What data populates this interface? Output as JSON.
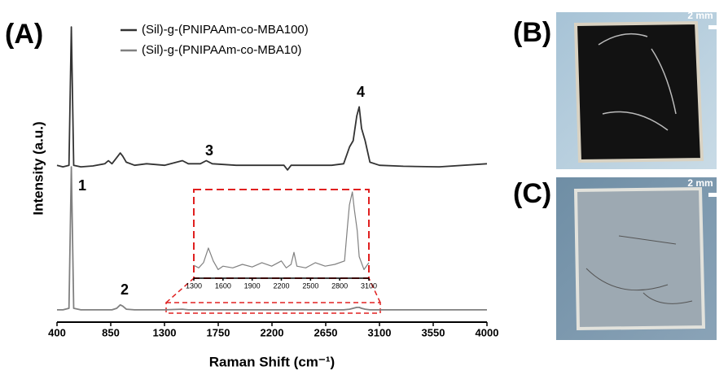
{
  "panels": [
    "(A)",
    "(B)",
    "(C)"
  ],
  "scale_bar": "2 mm",
  "chart_data": [
    {
      "type": "line",
      "xlabel": "Raman Shift (cm⁻¹)",
      "ylabel": "Intensity (a.u.)",
      "xlim": [
        400,
        4000
      ],
      "xticks": [
        400,
        850,
        1300,
        1750,
        2200,
        2650,
        3100,
        3550,
        4000
      ],
      "ylim": [
        0,
        100
      ],
      "annotations": [
        "1",
        "2",
        "3",
        "4"
      ],
      "x": [
        400,
        450,
        500,
        520,
        540,
        600,
        700,
        800,
        830,
        860,
        900,
        930,
        950,
        980,
        1050,
        1150,
        1300,
        1450,
        1500,
        1600,
        1650,
        1700,
        1900,
        2100,
        2300,
        2330,
        2360,
        2500,
        2700,
        2800,
        2850,
        2880,
        2910,
        2930,
        2950,
        2980,
        3020,
        3100,
        3300,
        3600,
        4000
      ],
      "series": [
        {
          "name": "(Sil)-g-(PNIPAAm-co-MBA10)",
          "color": "#808080",
          "values": [
            4,
            4,
            4.5,
            50.5,
            4.5,
            4,
            4,
            4,
            4,
            4,
            4.5,
            5.6,
            5.2,
            4.2,
            4,
            4,
            4,
            4.2,
            4,
            4,
            4,
            4,
            4,
            4,
            4,
            4,
            4,
            4,
            4,
            4,
            4.2,
            4.5,
            4.8,
            4.8,
            4.5,
            4.2,
            4,
            4,
            4,
            4,
            4
          ]
        },
        {
          "name": "(Sil)-g-(PNIPAAm-co-MBA100)",
          "color": "#333333",
          "values": [
            51,
            50.5,
            51,
            96,
            51,
            50.5,
            50.8,
            51.5,
            52.5,
            51.5,
            53.5,
            55,
            54,
            52,
            51,
            51.5,
            51,
            52.5,
            51.5,
            51.5,
            52.5,
            51.5,
            51,
            51,
            51,
            49.5,
            51,
            51,
            51,
            51.5,
            57,
            59,
            67,
            70,
            63,
            59,
            52,
            51,
            50.7,
            50.5,
            51.5
          ]
        }
      ]
    },
    {
      "type": "line",
      "xlim": [
        1300,
        3100
      ],
      "xticks": [
        1300,
        1600,
        1900,
        2200,
        2500,
        2800,
        3100
      ],
      "ylim": [
        0,
        100
      ],
      "x": [
        1300,
        1350,
        1400,
        1450,
        1500,
        1550,
        1600,
        1700,
        1800,
        1900,
        2000,
        2100,
        2200,
        2250,
        2300,
        2330,
        2360,
        2450,
        2550,
        2650,
        2750,
        2850,
        2880,
        2900,
        2930,
        2950,
        2980,
        3000,
        3050,
        3100
      ],
      "series": [
        {
          "color": "#808080",
          "values": [
            15,
            12,
            18,
            35,
            20,
            10,
            14,
            12,
            16,
            13,
            18,
            14,
            20,
            12,
            16,
            30,
            14,
            12,
            18,
            14,
            16,
            20,
            60,
            85,
            100,
            80,
            55,
            25,
            10,
            18
          ]
        }
      ]
    }
  ]
}
